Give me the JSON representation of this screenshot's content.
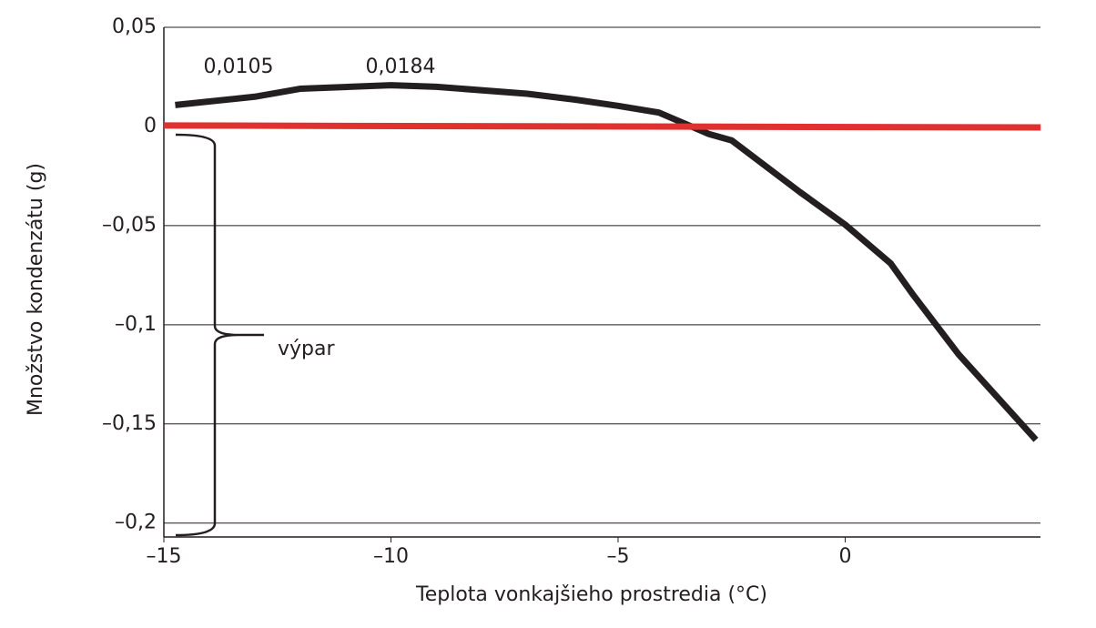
{
  "chart_data": {
    "type": "line",
    "xlabel": "Teplota vonkajšieho prostredia (°C)",
    "ylabel": "Množstvo kondenzátu (g)",
    "xlim": [
      -15,
      4.3
    ],
    "ylim": [
      -0.207,
      0.05
    ],
    "xticks": [
      {
        "value": -15,
        "label": "–15"
      },
      {
        "value": -10,
        "label": "–10"
      },
      {
        "value": -5,
        "label": "–5"
      },
      0
    ],
    "yticks": [
      {
        "value": 0.05,
        "label": "0,05"
      },
      0,
      {
        "value": -0.05,
        "label": "–0,05"
      },
      {
        "value": -0.1,
        "label": "–0,1"
      },
      {
        "value": -0.15,
        "label": "–0,15"
      },
      {
        "value": -0.2,
        "label": "–0,2"
      }
    ],
    "grid": true,
    "series": [
      {
        "color": "#231f20",
        "x": [
          -14.75,
          -13,
          -12,
          -10,
          -9,
          -7,
          -6,
          -5,
          -4.1,
          -3,
          -2.5,
          -1,
          0,
          1,
          1.5,
          2.5,
          4.2
        ],
        "values": [
          0.0108,
          0.015,
          0.019,
          0.0208,
          0.02,
          0.0165,
          0.0137,
          0.0104,
          0.007,
          -0.0038,
          -0.007,
          -0.033,
          -0.0495,
          -0.069,
          -0.085,
          -0.115,
          -0.158
        ]
      },
      {
        "color": "#e03131",
        "x": [
          -15,
          4.3
        ],
        "values": [
          0.0005,
          -0.0005
        ]
      }
    ],
    "annotations": [
      "0,0105",
      "0,0184",
      "výpar"
    ]
  }
}
